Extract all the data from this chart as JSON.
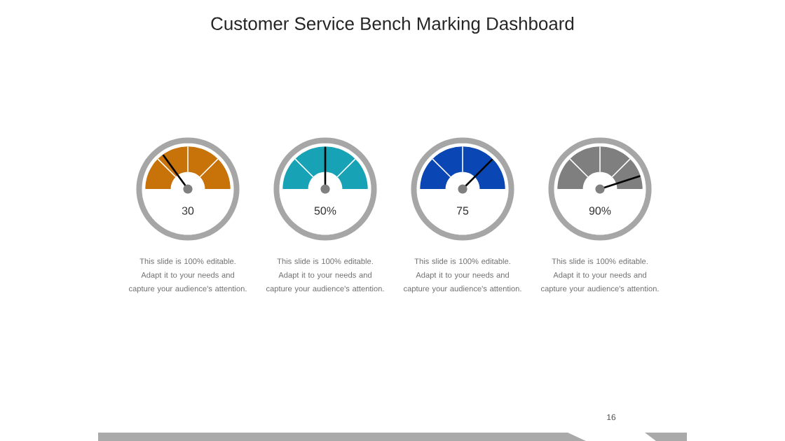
{
  "chart_data": [
    {
      "type": "other",
      "title": "Customer Service Bench Marking Dashboard",
      "values": [
        30
      ],
      "value_labels": [
        "30"
      ],
      "color": "#c8720a",
      "annotations": [
        "This slide is 100% editable. Adapt it to your needs and capture your audience's attention."
      ]
    },
    {
      "type": "other",
      "values": [
        50
      ],
      "value_labels": [
        "50%"
      ],
      "color": "#17a2b5",
      "annotations": [
        "This slide is 100% editable. Adapt it to your needs and capture your audience's attention."
      ]
    },
    {
      "type": "other",
      "values": [
        75
      ],
      "value_labels": [
        "75"
      ],
      "color": "#0a46b4",
      "annotations": [
        "This slide is 100% editable. Adapt it to your needs and capture your audience's attention."
      ]
    },
    {
      "type": "other",
      "values": [
        90
      ],
      "value_labels": [
        "90%"
      ],
      "color": "#7f7f7f",
      "annotations": [
        "This slide is 100% editable. Adapt it to your needs and capture your audience's attention.",
        "16"
      ]
    }
  ]
}
